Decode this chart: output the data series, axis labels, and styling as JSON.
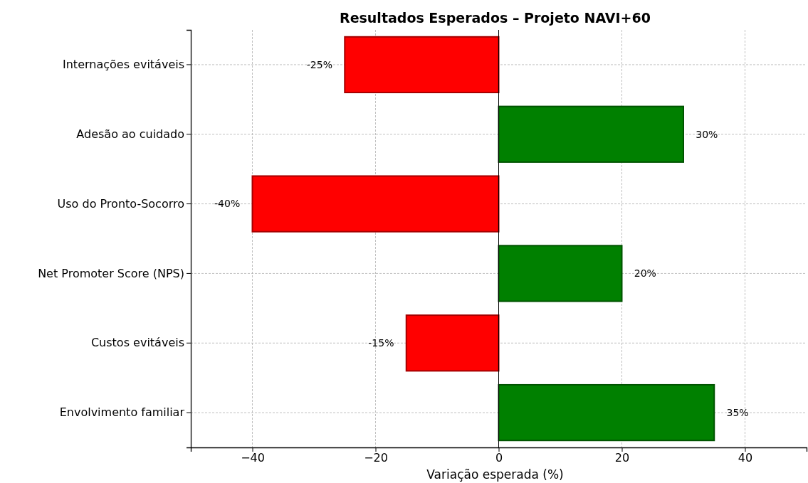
{
  "chart_data": {
    "type": "bar",
    "orientation": "horizontal",
    "title": "Resultados Esperados – Projeto NAVI+60",
    "xlabel": "Variação esperada (%)",
    "categories": [
      "Internações evitáveis",
      "Adesão ao cuidado",
      "Uso do Pronto-Socorro",
      "Net Promoter Score (NPS)",
      "Custos evitáveis",
      "Envolvimento familiar"
    ],
    "values": [
      -25,
      30,
      -40,
      20,
      -15,
      35
    ],
    "colors": [
      "#ff0000",
      "#008000",
      "#ff0000",
      "#008000",
      "#ff0000",
      "#008000"
    ],
    "value_labels": [
      "-25%",
      "30%",
      "-40%",
      "20%",
      "-15%",
      "35%"
    ],
    "xlim": [
      -50,
      50
    ],
    "xticks": [
      {
        "value": -40,
        "label": "−40"
      },
      {
        "value": -20,
        "label": "−20"
      },
      0,
      20,
      40
    ],
    "ref_lines": [
      {
        "axis": "x",
        "value": 0,
        "color": "#000000"
      }
    ],
    "grid": true
  }
}
